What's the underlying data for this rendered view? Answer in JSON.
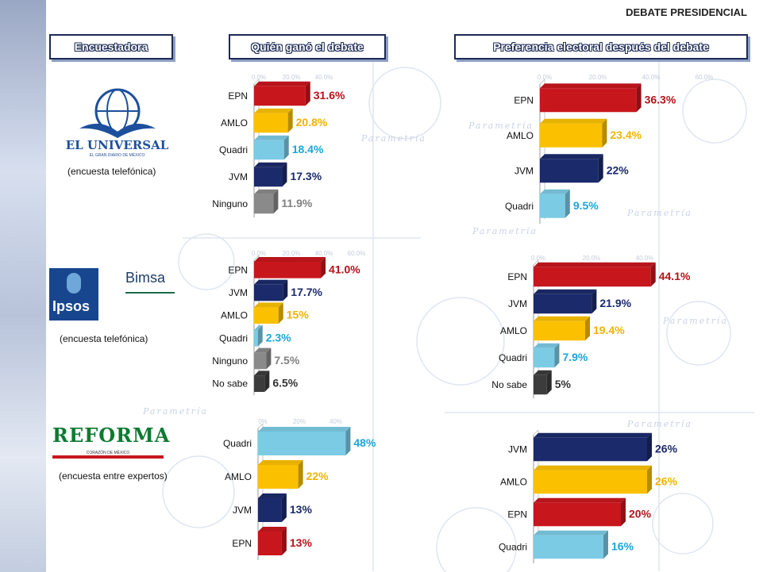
{
  "page_title": "DEBATE PRESIDENCIAL",
  "headers": {
    "pollster": "Encuestadora",
    "who_won": "Quién ganó el debate",
    "preference": "Preferencia electoral después del debate"
  },
  "background_word": "Parametría",
  "pollsters": [
    {
      "name": "EL UNIVERSAL",
      "tagline": "EL GRAN DIARIO DE MÉXICO",
      "method": "(encuesta telefónica)"
    },
    {
      "name": "Ipsos",
      "partner": "Bimsa",
      "method": "(encuesta telefónica)"
    },
    {
      "name": "REFORMA",
      "tagline": "CORAZÓN DE MÉXICO",
      "method": "(encuesta entre expertos)"
    }
  ],
  "colors": {
    "EPN": "#c8161d",
    "AMLO": "#fbc100",
    "Quadri": "#7ccbe5",
    "JVM": "#1b2a6b",
    "Ninguno": "#8a8a8a",
    "No sabe": "#3c3c3c",
    "label_EPN": "#b5121b",
    "label_AMLO": "#f0b400",
    "label_Quadri": "#1aa6d8",
    "label_JVM": "#1b2a6b",
    "label_Ninguno": "#808080",
    "label_No sabe": "#333333",
    "header_border": "#1c2a55"
  },
  "chart_data": [
    {
      "type": "bar",
      "orientation": "horizontal",
      "pollster": "EL UNIVERSAL",
      "question": "Quién ganó el debate",
      "categories": [
        "EPN",
        "AMLO",
        "Quadri",
        "JVM",
        "Ninguno"
      ],
      "values": [
        31.6,
        20.8,
        18.4,
        17.3,
        11.9
      ],
      "labels": [
        "31.6%",
        "20.8%",
        "18.4%",
        "17.3%",
        "11.9%"
      ],
      "xlim": [
        0,
        100
      ],
      "ticks": [
        "0.0%",
        "20.0%",
        "40.0%"
      ]
    },
    {
      "type": "bar",
      "orientation": "horizontal",
      "pollster": "EL UNIVERSAL",
      "question": "Preferencia electoral después del debate",
      "categories": [
        "EPN",
        "AMLO",
        "JVM",
        "Quadri"
      ],
      "values": [
        36.3,
        23.4,
        22,
        9.5
      ],
      "labels": [
        "36.3%",
        "23.4%",
        "22%",
        "9.5%"
      ],
      "xlim": [
        0,
        100
      ],
      "ticks": [
        "0.0%",
        "20.0%",
        "40.0%",
        "60.0%"
      ]
    },
    {
      "type": "bar",
      "orientation": "horizontal",
      "pollster": "Ipsos-Bimsa",
      "question": "Quién ganó el debate",
      "categories": [
        "EPN",
        "JVM",
        "AMLO",
        "Quadri",
        "Ninguno",
        "No sabe"
      ],
      "values": [
        41.0,
        17.7,
        15,
        2.3,
        7.5,
        6.5
      ],
      "labels": [
        "41.0%",
        "17.7%",
        "15%",
        "2.3%",
        "7.5%",
        "6.5%"
      ],
      "xlim": [
        0,
        100
      ],
      "ticks": [
        "0.0%",
        "20.0%",
        "40.0%",
        "60.0%"
      ]
    },
    {
      "type": "bar",
      "orientation": "horizontal",
      "pollster": "Ipsos-Bimsa",
      "question": "Preferencia electoral después del debate",
      "categories": [
        "EPN",
        "JVM",
        "AMLO",
        "Quadri",
        "No sabe"
      ],
      "values": [
        44.1,
        21.9,
        19.4,
        7.9,
        5
      ],
      "labels": [
        "44.1%",
        "21.9%",
        "19.4%",
        "7.9%",
        "5%"
      ],
      "xlim": [
        0,
        100
      ],
      "ticks": [
        "0.0%",
        "20.0%",
        "40.0%"
      ]
    },
    {
      "type": "bar",
      "orientation": "horizontal",
      "pollster": "REFORMA",
      "question": "Quién ganó el debate",
      "categories": [
        "Quadri",
        "AMLO",
        "JVM",
        "EPN"
      ],
      "values": [
        48,
        22,
        13,
        13
      ],
      "labels": [
        "48%",
        "22%",
        "13%",
        "13%"
      ],
      "xlim": [
        0,
        80
      ],
      "ticks": [
        "0%",
        "20%",
        "40%"
      ]
    },
    {
      "type": "bar",
      "orientation": "horizontal",
      "pollster": "REFORMA",
      "question": "Preferencia electoral después del debate",
      "categories": [
        "JVM",
        "AMLO",
        "EPN",
        "Quadri"
      ],
      "values": [
        26,
        26,
        20,
        16
      ],
      "labels": [
        "26%",
        "26%",
        "20%",
        "16%"
      ],
      "xlim": [
        0,
        100
      ],
      "ticks": []
    }
  ]
}
